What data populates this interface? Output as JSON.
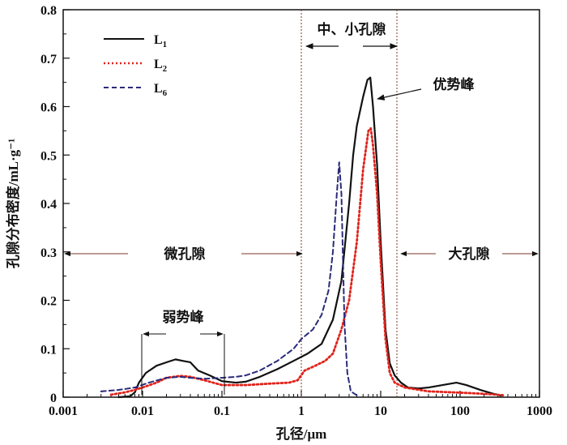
{
  "chart_data": {
    "type": "line",
    "xscale": "log",
    "xlim": [
      0.001,
      1000
    ],
    "ylim": [
      0,
      0.8
    ],
    "xlabel": "孔径/μm",
    "ylabel": "孔隙分布密度/mL·g⁻¹",
    "x_ticks": [
      "0.001",
      "0.01",
      "0.1",
      "1",
      "10",
      "100",
      "1000"
    ],
    "x_tick_values": [
      0.001,
      0.01,
      0.1,
      1,
      10,
      100,
      1000
    ],
    "y_ticks": [
      "0",
      "0.1",
      "0.2",
      "0.3",
      "0.4",
      "0.5",
      "0.6",
      "0.7",
      "0.8"
    ],
    "y_tick_values": [
      0,
      0.1,
      0.2,
      0.3,
      0.4,
      0.5,
      0.6,
      0.7,
      0.8
    ],
    "grid": false,
    "legend": "top-left",
    "series": [
      {
        "name": "L1",
        "color": "#111111",
        "style": "solid",
        "points": [
          [
            0.005,
            0
          ],
          [
            0.007,
            0.002
          ],
          [
            0.008,
            0.01
          ],
          [
            0.009,
            0.03
          ],
          [
            0.011,
            0.05
          ],
          [
            0.015,
            0.065
          ],
          [
            0.02,
            0.072
          ],
          [
            0.026,
            0.078
          ],
          [
            0.032,
            0.075
          ],
          [
            0.04,
            0.072
          ],
          [
            0.05,
            0.055
          ],
          [
            0.07,
            0.045
          ],
          [
            0.1,
            0.033
          ],
          [
            0.15,
            0.03
          ],
          [
            0.2,
            0.032
          ],
          [
            0.3,
            0.042
          ],
          [
            0.5,
            0.058
          ],
          [
            0.8,
            0.075
          ],
          [
            1.2,
            0.09
          ],
          [
            1.8,
            0.11
          ],
          [
            2.5,
            0.16
          ],
          [
            3.2,
            0.24
          ],
          [
            4,
            0.4
          ],
          [
            4.5,
            0.5
          ],
          [
            5,
            0.56
          ],
          [
            6,
            0.62
          ],
          [
            6.8,
            0.655
          ],
          [
            7.4,
            0.66
          ],
          [
            8,
            0.6
          ],
          [
            9,
            0.48
          ],
          [
            10,
            0.32
          ],
          [
            11.5,
            0.14
          ],
          [
            13,
            0.07
          ],
          [
            15,
            0.045
          ],
          [
            18,
            0.03
          ],
          [
            22,
            0.02
          ],
          [
            30,
            0.018
          ],
          [
            40,
            0.02
          ],
          [
            60,
            0.025
          ],
          [
            90,
            0.03
          ],
          [
            120,
            0.025
          ],
          [
            180,
            0.015
          ],
          [
            250,
            0.008
          ],
          [
            330,
            0.003
          ]
        ]
      },
      {
        "name": "L2",
        "color": "#e0241c",
        "style": "dotted",
        "points": [
          [
            0.004,
            0.005
          ],
          [
            0.006,
            0.01
          ],
          [
            0.008,
            0.015
          ],
          [
            0.01,
            0.02
          ],
          [
            0.015,
            0.03
          ],
          [
            0.02,
            0.04
          ],
          [
            0.03,
            0.044
          ],
          [
            0.04,
            0.042
          ],
          [
            0.06,
            0.035
          ],
          [
            0.1,
            0.025
          ],
          [
            0.2,
            0.025
          ],
          [
            0.4,
            0.028
          ],
          [
            0.7,
            0.03
          ],
          [
            0.9,
            0.035
          ],
          [
            1.1,
            0.055
          ],
          [
            1.5,
            0.065
          ],
          [
            2,
            0.075
          ],
          [
            2.5,
            0.09
          ],
          [
            3.2,
            0.14
          ],
          [
            4,
            0.2
          ],
          [
            5,
            0.32
          ],
          [
            6,
            0.47
          ],
          [
            7,
            0.55
          ],
          [
            7.5,
            0.555
          ],
          [
            8,
            0.52
          ],
          [
            9,
            0.42
          ],
          [
            10,
            0.28
          ],
          [
            11.5,
            0.12
          ],
          [
            13,
            0.05
          ],
          [
            15,
            0.03
          ],
          [
            20,
            0.02
          ],
          [
            40,
            0.012
          ],
          [
            80,
            0.01
          ],
          [
            150,
            0.008
          ],
          [
            250,
            0.006
          ],
          [
            350,
            0.004
          ]
        ]
      },
      {
        "name": "L6",
        "color": "#2a2a7a",
        "style": "dashed",
        "points": [
          [
            0.003,
            0.012
          ],
          [
            0.005,
            0.015
          ],
          [
            0.008,
            0.02
          ],
          [
            0.012,
            0.03
          ],
          [
            0.02,
            0.04
          ],
          [
            0.03,
            0.042
          ],
          [
            0.04,
            0.04
          ],
          [
            0.06,
            0.038
          ],
          [
            0.1,
            0.04
          ],
          [
            0.15,
            0.042
          ],
          [
            0.2,
            0.045
          ],
          [
            0.3,
            0.055
          ],
          [
            0.5,
            0.075
          ],
          [
            0.8,
            0.1
          ],
          [
            1,
            0.12
          ],
          [
            1.4,
            0.14
          ],
          [
            1.8,
            0.17
          ],
          [
            2.2,
            0.22
          ],
          [
            2.5,
            0.3
          ],
          [
            2.8,
            0.42
          ],
          [
            3,
            0.485
          ],
          [
            3.2,
            0.42
          ],
          [
            3.5,
            0.15
          ],
          [
            3.8,
            0.05
          ],
          [
            4.2,
            0.012
          ],
          [
            5,
            0.004
          ]
        ]
      }
    ],
    "annotations": {
      "micro_pore": "微孔隙",
      "meso_pore": "中、小孔隙",
      "macro_pore": "大孔隙",
      "weak_peak": "弱势峰",
      "dominant_peak": "优势峰"
    }
  }
}
